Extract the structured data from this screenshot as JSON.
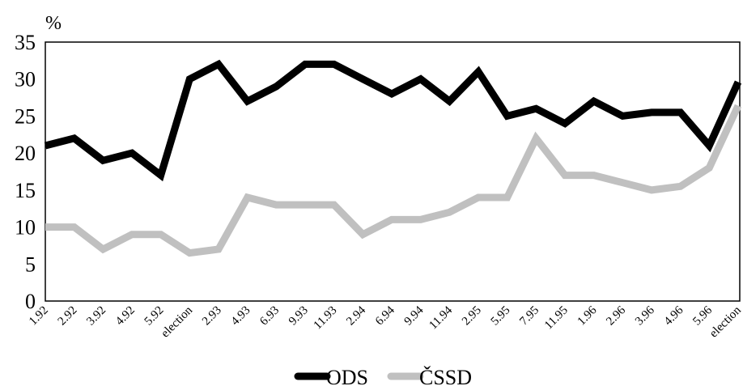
{
  "chart_data": {
    "type": "line",
    "title": "",
    "xlabel": "",
    "ylabel": "%",
    "ylim": [
      0,
      35
    ],
    "yticks": [
      0,
      5,
      10,
      15,
      20,
      25,
      30,
      35
    ],
    "grid": false,
    "legend_position": "bottom",
    "categories": [
      "1.92",
      "2.92",
      "3.92",
      "4.92",
      "5.92",
      "election",
      "2.93",
      "4.93",
      "6.93",
      "9.93",
      "11.93",
      "2.94",
      "6.94",
      "9.94",
      "11.94",
      "2.95",
      "5.95",
      "7.95",
      "11.95",
      "1.96",
      "2.96",
      "3.96",
      "4.96",
      "5.96",
      "election"
    ],
    "series": [
      {
        "name": "ODS",
        "color": "#000000",
        "values": [
          21,
          22,
          19,
          20,
          17,
          30,
          32,
          27,
          29,
          32,
          32,
          30,
          28,
          30,
          27,
          31,
          25,
          26,
          24,
          27,
          25,
          25.5,
          25.5,
          21,
          29.6
        ]
      },
      {
        "name": "ČSSD",
        "color": "#c0c0c0",
        "values": [
          10,
          10,
          7,
          9,
          9,
          6.5,
          7,
          14,
          13,
          13,
          13,
          9,
          11,
          11,
          12,
          14,
          14,
          22,
          17,
          17,
          16,
          15,
          15.5,
          18,
          26.4
        ]
      }
    ]
  }
}
